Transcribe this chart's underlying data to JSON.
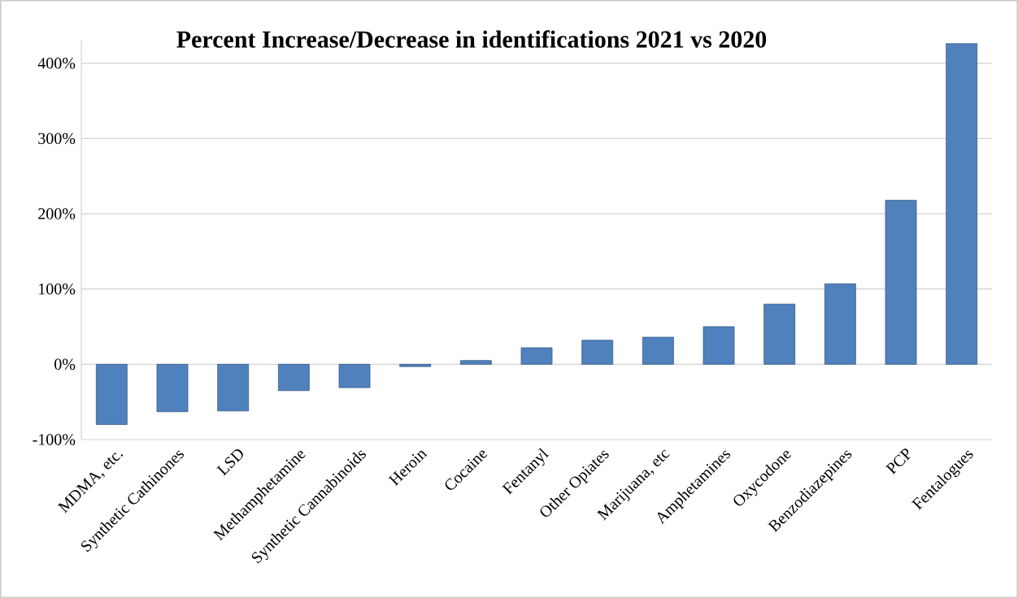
{
  "chart_data": {
    "type": "bar",
    "title": "Percent Increase/Decrease in identifications 2021 vs 2020",
    "categories": [
      "MDMA, etc.",
      "Synthetic Cathinones",
      "LSD",
      "Methamphetamine",
      "Synthetic Cannabinoids",
      "Heroin",
      "Cocaine",
      "Fentanyl",
      "Other Opiates",
      "Marijuana, etc",
      "Amphetamines",
      "Oxycodone",
      "Benzodiazepines",
      "PCP",
      "Fentalogues"
    ],
    "values": [
      -80,
      -63,
      -62,
      -35,
      -31,
      -3,
      5,
      22,
      32,
      36,
      50,
      80,
      107,
      218,
      426
    ],
    "color": "#4f81bd",
    "ylim": [
      -100,
      430
    ],
    "yticks": [
      {
        "value": -100,
        "label": "-100%"
      },
      {
        "value": 0,
        "label": "0%"
      },
      {
        "value": 100,
        "label": "100%"
      },
      {
        "value": 200,
        "label": "200%"
      },
      {
        "value": 300,
        "label": "300%"
      },
      {
        "value": 400,
        "label": "400%"
      }
    ],
    "grid": "y"
  }
}
